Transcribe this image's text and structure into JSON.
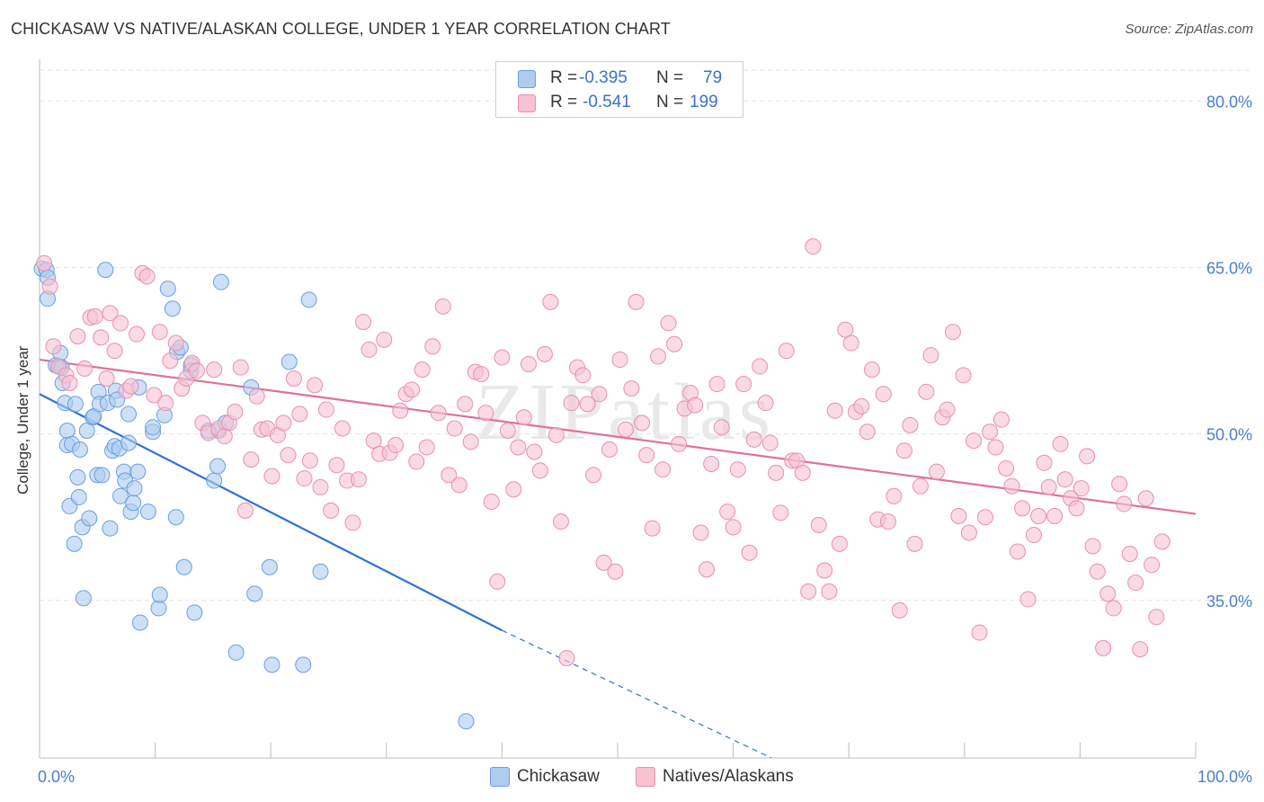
{
  "title": "CHICKASAW VS NATIVE/ALASKAN COLLEGE, UNDER 1 YEAR CORRELATION CHART",
  "source": "Source: ZipAtlas.com",
  "watermark": "ZIPatlas",
  "legend": {
    "rows": [
      {
        "r_label": "R = ",
        "r_value": "-0.395",
        "n_label": "N = ",
        "n_value": "79"
      },
      {
        "r_label": "R = ",
        "r_value": "-0.541",
        "n_label": "N = ",
        "n_value": "199"
      }
    ]
  },
  "bottom_legend": {
    "series1": "Chickasaw",
    "series2": "Natives/Alaskans"
  },
  "colors": {
    "blue_fill": "#aecbf0",
    "blue_stroke": "#6a9fe0",
    "blue_line": "#2e73d6",
    "pink_fill": "#f7c2d2",
    "pink_stroke": "#e98faf",
    "pink_line": "#e0709a",
    "grid": "#e2e2e2",
    "tick_text": "#4a7fd0"
  },
  "chart_data": {
    "type": "scatter",
    "title": "CHICKASAW VS NATIVE/ALASKAN COLLEGE, UNDER 1 YEAR CORRELATION CHART",
    "xlabel": "",
    "ylabel": "College, Under 1 year",
    "xlim": [
      0,
      100
    ],
    "ylim": [
      20.8,
      82.8
    ],
    "x_tick_labels": [
      "0.0%",
      "100.0%"
    ],
    "y_ticks": [
      35,
      50,
      65,
      80
    ],
    "y_tick_labels": [
      "35.0%",
      "50.0%",
      "65.0%",
      "80.0%"
    ],
    "grid": true,
    "legend_position": "top-center",
    "series": [
      {
        "name": "Chickasaw",
        "R": -0.395,
        "N": 79,
        "trend": {
          "x0": 0,
          "y0": 53.6,
          "x1": 40,
          "y1": 32.3,
          "dashed_to_x": 63.3,
          "dashed_to_y": 20.8
        },
        "points": [
          [
            0.2,
            64.9
          ],
          [
            0.6,
            64.8
          ],
          [
            0.7,
            64.1
          ],
          [
            0.7,
            62.2
          ],
          [
            1.4,
            56.2
          ],
          [
            1.7,
            56.1
          ],
          [
            1.8,
            57.3
          ],
          [
            1.9,
            56.0
          ],
          [
            2.0,
            54.6
          ],
          [
            2.2,
            52.8
          ],
          [
            2.4,
            50.3
          ],
          [
            2.4,
            49.0
          ],
          [
            2.6,
            43.5
          ],
          [
            2.8,
            49.1
          ],
          [
            3.0,
            40.1
          ],
          [
            3.1,
            52.7
          ],
          [
            3.3,
            46.1
          ],
          [
            3.4,
            44.3
          ],
          [
            3.5,
            48.6
          ],
          [
            3.7,
            41.6
          ],
          [
            3.8,
            35.2
          ],
          [
            4.1,
            50.3
          ],
          [
            4.3,
            42.4
          ],
          [
            4.6,
            51.5
          ],
          [
            4.7,
            51.6
          ],
          [
            5.0,
            46.3
          ],
          [
            5.1,
            53.8
          ],
          [
            5.2,
            52.7
          ],
          [
            5.4,
            46.3
          ],
          [
            5.7,
            64.8
          ],
          [
            5.9,
            52.8
          ],
          [
            6.1,
            41.5
          ],
          [
            6.3,
            48.5
          ],
          [
            6.5,
            48.9
          ],
          [
            6.6,
            53.9
          ],
          [
            6.7,
            53.1
          ],
          [
            6.9,
            48.7
          ],
          [
            7.0,
            44.4
          ],
          [
            7.3,
            46.6
          ],
          [
            7.4,
            45.8
          ],
          [
            7.7,
            49.2
          ],
          [
            7.7,
            51.8
          ],
          [
            7.9,
            43.0
          ],
          [
            8.1,
            43.8
          ],
          [
            8.2,
            45.1
          ],
          [
            8.5,
            46.6
          ],
          [
            8.6,
            54.2
          ],
          [
            8.7,
            33.0
          ],
          [
            9.4,
            43.0
          ],
          [
            9.8,
            50.2
          ],
          [
            9.8,
            50.6
          ],
          [
            10.3,
            34.3
          ],
          [
            10.4,
            35.5
          ],
          [
            10.8,
            51.7
          ],
          [
            11.1,
            63.1
          ],
          [
            11.5,
            61.3
          ],
          [
            11.8,
            42.5
          ],
          [
            11.9,
            57.4
          ],
          [
            12.2,
            57.8
          ],
          [
            12.5,
            38.0
          ],
          [
            13.1,
            56.2
          ],
          [
            13.1,
            55.7
          ],
          [
            13.4,
            33.9
          ],
          [
            14.6,
            50.3
          ],
          [
            15.1,
            45.8
          ],
          [
            15.4,
            47.1
          ],
          [
            15.5,
            50.3
          ],
          [
            15.7,
            63.7
          ],
          [
            16.1,
            51.0
          ],
          [
            17.0,
            30.3
          ],
          [
            18.3,
            54.2
          ],
          [
            18.6,
            35.6
          ],
          [
            19.9,
            38.0
          ],
          [
            20.1,
            29.2
          ],
          [
            21.6,
            56.5
          ],
          [
            22.8,
            29.2
          ],
          [
            23.3,
            62.1
          ],
          [
            24.3,
            37.6
          ],
          [
            36.9,
            24.1
          ]
        ]
      },
      {
        "name": "Natives/Alaskans",
        "R": -0.541,
        "N": 199,
        "trend": {
          "x0": 0,
          "y0": 56.7,
          "x1": 100,
          "y1": 42.8
        },
        "points": [
          [
            0.4,
            65.4
          ],
          [
            0.9,
            63.3
          ],
          [
            1.2,
            57.9
          ],
          [
            1.6,
            56.1
          ],
          [
            2.3,
            55.3
          ],
          [
            2.6,
            54.6
          ],
          [
            3.3,
            58.8
          ],
          [
            3.9,
            55.9
          ],
          [
            4.4,
            60.5
          ],
          [
            4.8,
            60.6
          ],
          [
            5.3,
            58.7
          ],
          [
            5.8,
            55.0
          ],
          [
            6.1,
            60.9
          ],
          [
            6.5,
            57.5
          ],
          [
            7.0,
            60.0
          ],
          [
            7.5,
            53.9
          ],
          [
            7.9,
            54.3
          ],
          [
            8.4,
            59.0
          ],
          [
            8.9,
            64.5
          ],
          [
            9.3,
            64.2
          ],
          [
            9.9,
            53.5
          ],
          [
            10.4,
            59.2
          ],
          [
            10.9,
            52.8
          ],
          [
            11.3,
            56.6
          ],
          [
            11.8,
            58.2
          ],
          [
            12.3,
            54.1
          ],
          [
            12.7,
            55.0
          ],
          [
            13.2,
            56.4
          ],
          [
            13.6,
            55.7
          ],
          [
            14.1,
            51.0
          ],
          [
            14.6,
            50.1
          ],
          [
            15.1,
            55.8
          ],
          [
            15.5,
            50.5
          ],
          [
            16.0,
            49.8
          ],
          [
            16.4,
            51.0
          ],
          [
            16.9,
            52.0
          ],
          [
            17.4,
            56.0
          ],
          [
            17.8,
            43.1
          ],
          [
            18.3,
            47.7
          ],
          [
            18.8,
            53.4
          ],
          [
            19.2,
            50.4
          ],
          [
            19.7,
            50.5
          ],
          [
            20.1,
            46.2
          ],
          [
            20.6,
            49.9
          ],
          [
            21.1,
            51.0
          ],
          [
            21.5,
            48.1
          ],
          [
            22.0,
            55.0
          ],
          [
            22.5,
            51.8
          ],
          [
            22.9,
            46.0
          ],
          [
            23.4,
            47.6
          ],
          [
            23.8,
            54.4
          ],
          [
            24.3,
            45.2
          ],
          [
            24.8,
            52.2
          ],
          [
            25.2,
            43.1
          ],
          [
            25.7,
            47.2
          ],
          [
            26.2,
            50.5
          ],
          [
            26.6,
            45.8
          ],
          [
            27.1,
            42.0
          ],
          [
            27.6,
            45.9
          ],
          [
            28.0,
            60.1
          ],
          [
            28.5,
            57.6
          ],
          [
            28.9,
            49.4
          ],
          [
            29.4,
            48.2
          ],
          [
            29.8,
            58.5
          ],
          [
            30.3,
            48.3
          ],
          [
            30.8,
            49.0
          ],
          [
            31.2,
            52.1
          ],
          [
            31.7,
            53.6
          ],
          [
            32.2,
            54.0
          ],
          [
            32.6,
            47.5
          ],
          [
            33.1,
            55.8
          ],
          [
            33.5,
            48.8
          ],
          [
            34.0,
            57.9
          ],
          [
            34.5,
            51.9
          ],
          [
            34.9,
            61.5
          ],
          [
            35.4,
            46.3
          ],
          [
            35.9,
            50.5
          ],
          [
            36.3,
            45.4
          ],
          [
            36.8,
            52.7
          ],
          [
            37.3,
            49.3
          ],
          [
            37.7,
            55.6
          ],
          [
            38.2,
            55.4
          ],
          [
            38.6,
            51.9
          ],
          [
            39.1,
            43.9
          ],
          [
            39.6,
            36.7
          ],
          [
            40.0,
            56.9
          ],
          [
            40.5,
            50.3
          ],
          [
            41.0,
            45.0
          ],
          [
            41.4,
            48.8
          ],
          [
            41.9,
            51.5
          ],
          [
            42.3,
            56.3
          ],
          [
            42.8,
            48.4
          ],
          [
            43.3,
            46.7
          ],
          [
            43.7,
            57.2
          ],
          [
            44.2,
            61.9
          ],
          [
            44.7,
            49.9
          ],
          [
            45.1,
            42.1
          ],
          [
            45.6,
            29.8
          ],
          [
            46.0,
            52.8
          ],
          [
            46.5,
            56.0
          ],
          [
            47.0,
            55.3
          ],
          [
            47.4,
            52.7
          ],
          [
            47.9,
            46.3
          ],
          [
            48.4,
            53.6
          ],
          [
            48.8,
            38.4
          ],
          [
            49.3,
            48.6
          ],
          [
            49.8,
            37.6
          ],
          [
            50.2,
            56.7
          ],
          [
            50.7,
            50.4
          ],
          [
            51.2,
            54.1
          ],
          [
            51.6,
            61.9
          ],
          [
            52.1,
            51.0
          ],
          [
            52.5,
            48.1
          ],
          [
            53.0,
            41.5
          ],
          [
            53.5,
            57.0
          ],
          [
            53.9,
            46.8
          ],
          [
            54.4,
            60.0
          ],
          [
            54.9,
            58.1
          ],
          [
            55.3,
            49.1
          ],
          [
            55.8,
            52.3
          ],
          [
            56.3,
            53.7
          ],
          [
            56.7,
            52.6
          ],
          [
            57.2,
            41.1
          ],
          [
            57.7,
            37.8
          ],
          [
            58.1,
            47.3
          ],
          [
            58.6,
            54.5
          ],
          [
            59.0,
            50.6
          ],
          [
            59.5,
            43.0
          ],
          [
            60.0,
            41.6
          ],
          [
            60.4,
            46.8
          ],
          [
            60.9,
            54.5
          ],
          [
            61.4,
            39.3
          ],
          [
            61.8,
            49.5
          ],
          [
            62.3,
            56.1
          ],
          [
            62.8,
            52.8
          ],
          [
            63.2,
            49.2
          ],
          [
            63.7,
            46.5
          ],
          [
            64.1,
            42.9
          ],
          [
            64.6,
            57.5
          ],
          [
            65.1,
            47.6
          ],
          [
            65.5,
            47.6
          ],
          [
            66.0,
            46.5
          ],
          [
            66.5,
            35.8
          ],
          [
            66.9,
            66.9
          ],
          [
            67.4,
            41.8
          ],
          [
            67.9,
            37.7
          ],
          [
            68.3,
            35.8
          ],
          [
            68.8,
            52.1
          ],
          [
            69.2,
            40.1
          ],
          [
            69.7,
            59.4
          ],
          [
            70.2,
            58.2
          ],
          [
            70.6,
            52.0
          ],
          [
            71.1,
            52.5
          ],
          [
            71.6,
            50.2
          ],
          [
            72.0,
            55.8
          ],
          [
            72.5,
            42.3
          ],
          [
            73.0,
            53.6
          ],
          [
            73.4,
            42.1
          ],
          [
            73.9,
            44.4
          ],
          [
            74.4,
            34.1
          ],
          [
            74.8,
            48.5
          ],
          [
            75.3,
            50.8
          ],
          [
            75.7,
            40.1
          ],
          [
            76.2,
            45.3
          ],
          [
            76.7,
            53.8
          ],
          [
            77.1,
            57.1
          ],
          [
            77.6,
            46.6
          ],
          [
            78.1,
            51.5
          ],
          [
            78.5,
            52.2
          ],
          [
            79.0,
            59.2
          ],
          [
            79.5,
            42.6
          ],
          [
            79.9,
            55.3
          ],
          [
            80.4,
            41.1
          ],
          [
            80.8,
            49.4
          ],
          [
            81.3,
            32.1
          ],
          [
            81.8,
            42.5
          ],
          [
            82.2,
            50.2
          ],
          [
            82.7,
            48.8
          ],
          [
            83.2,
            51.3
          ],
          [
            83.6,
            46.9
          ],
          [
            84.1,
            45.3
          ],
          [
            84.6,
            39.4
          ],
          [
            85.0,
            43.3
          ],
          [
            85.5,
            35.1
          ],
          [
            86.0,
            40.9
          ],
          [
            86.4,
            42.6
          ],
          [
            86.9,
            47.4
          ],
          [
            87.3,
            45.2
          ],
          [
            87.8,
            42.6
          ],
          [
            88.3,
            49.1
          ],
          [
            88.7,
            45.9
          ],
          [
            89.2,
            44.2
          ],
          [
            89.7,
            43.3
          ],
          [
            90.1,
            45.1
          ],
          [
            90.6,
            48.0
          ],
          [
            91.1,
            39.9
          ],
          [
            91.5,
            37.6
          ],
          [
            92.0,
            30.7
          ],
          [
            92.4,
            35.6
          ],
          [
            92.9,
            34.3
          ],
          [
            93.4,
            45.5
          ],
          [
            93.8,
            43.7
          ],
          [
            94.3,
            39.2
          ],
          [
            94.8,
            36.6
          ],
          [
            95.2,
            30.6
          ],
          [
            95.7,
            44.2
          ],
          [
            96.2,
            38.2
          ],
          [
            96.6,
            33.5
          ],
          [
            97.1,
            40.3
          ]
        ]
      }
    ]
  }
}
